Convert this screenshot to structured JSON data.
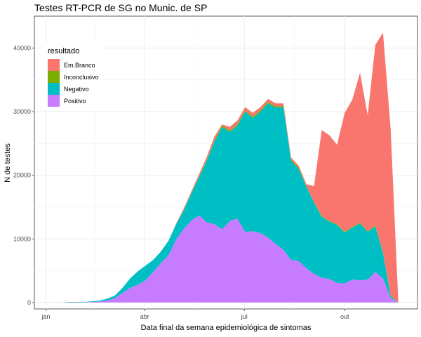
{
  "chart_data": {
    "type": "area",
    "stacked": true,
    "title": "Testes RT-PCR de SG no Munic. de SP",
    "xlabel": "Data final da semana epidemiológica de sintomas",
    "ylabel": "N de testes",
    "ylim": [
      -1000,
      45000
    ],
    "yticks": [
      0,
      10000,
      20000,
      30000,
      40000
    ],
    "ytick_labels": [
      "0",
      "10000",
      "20000",
      "30000",
      "40000"
    ],
    "xticks": [
      {
        "label": "jan",
        "week": 0
      },
      {
        "label": "abr",
        "week": 12.9
      },
      {
        "label": "jul",
        "week": 25.9
      },
      {
        "label": "out",
        "week": 39
      }
    ],
    "xlim": [
      -1.5,
      48.5
    ],
    "grid": true,
    "legend": {
      "title": "resultado",
      "position": "top-left",
      "entries": [
        "Em.Branco",
        "Inconclusivo",
        "Negativo",
        "Positivo"
      ]
    },
    "colors": {
      "Em.Branco": "#F8766D",
      "Inconclusivo": "#7CAE00",
      "Negativo": "#00BFC4",
      "Positivo": "#C77CFF"
    },
    "x_weeks": [
      0,
      1,
      2,
      3,
      4,
      5,
      6,
      7,
      8,
      9,
      10,
      11,
      12,
      13,
      14,
      15,
      16,
      17,
      18,
      19,
      20,
      21,
      22,
      23,
      24,
      25,
      26,
      27,
      28,
      29,
      30,
      31,
      32,
      33,
      34,
      35,
      36,
      37,
      38,
      39,
      40,
      41,
      42,
      43,
      44,
      45,
      46
    ],
    "series": [
      {
        "name": "Positivo",
        "values": [
          0,
          0,
          0,
          50,
          50,
          50,
          100,
          150,
          300,
          700,
          1500,
          2300,
          2800,
          3500,
          4800,
          6200,
          7400,
          9900,
          11600,
          12900,
          13700,
          12600,
          12300,
          11500,
          12800,
          13200,
          11100,
          11200,
          10900,
          10200,
          9200,
          8300,
          6700,
          6500,
          5400,
          4500,
          3900,
          3700,
          3100,
          3000,
          3600,
          3500,
          3600,
          4800,
          3800,
          700,
          0
        ]
      },
      {
        "name": "Negativo",
        "values": [
          0,
          0,
          0,
          50,
          50,
          50,
          100,
          150,
          300,
          400,
          800,
          1500,
          2100,
          2300,
          1900,
          1800,
          2300,
          2400,
          2900,
          4300,
          6000,
          9700,
          13000,
          16100,
          14000,
          14600,
          18900,
          17800,
          19100,
          21100,
          21400,
          22400,
          15600,
          14500,
          12800,
          11200,
          9600,
          9000,
          9100,
          8000,
          8200,
          8900,
          7500,
          7200,
          4000,
          300,
          0
        ]
      },
      {
        "name": "Inconclusivo",
        "values": [
          0,
          0,
          0,
          0,
          0,
          0,
          0,
          0,
          0,
          0,
          0,
          0,
          0,
          0,
          0,
          0,
          0,
          0,
          100,
          100,
          100,
          100,
          200,
          200,
          200,
          200,
          200,
          200,
          200,
          200,
          200,
          200,
          200,
          200,
          100,
          100,
          100,
          100,
          100,
          100,
          100,
          100,
          100,
          100,
          100,
          100,
          0
        ]
      },
      {
        "name": "Em.Branco",
        "values": [
          0,
          0,
          0,
          0,
          0,
          0,
          0,
          0,
          0,
          0,
          0,
          0,
          0,
          0,
          0,
          0,
          0,
          100,
          200,
          200,
          400,
          500,
          600,
          200,
          600,
          600,
          500,
          600,
          500,
          500,
          500,
          400,
          300,
          300,
          300,
          2500,
          13500,
          13500,
          12500,
          18700,
          20000,
          23600,
          18200,
          28400,
          34500,
          26100,
          0
        ]
      }
    ]
  }
}
